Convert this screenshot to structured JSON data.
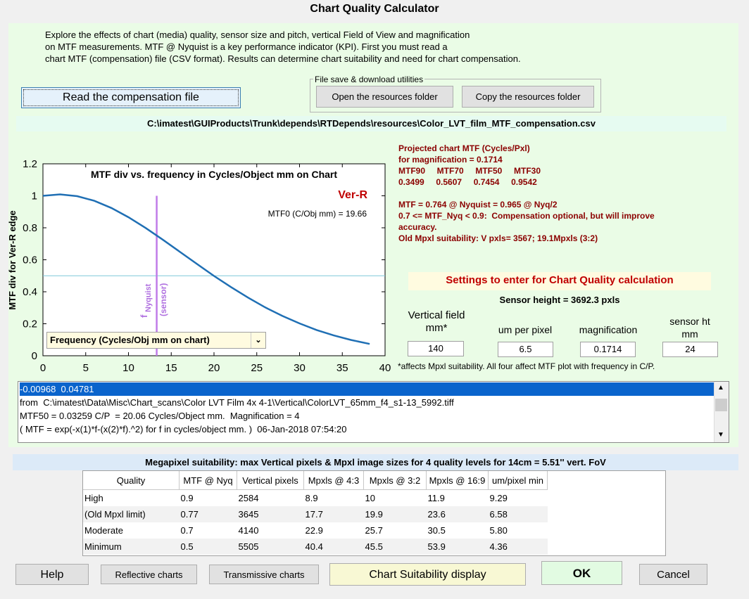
{
  "window": {
    "title": "Chart Quality Calculator"
  },
  "intro": {
    "lines": [
      "Explore the effects of chart (media) quality, sensor size and pitch, vertical Field of View and magnification",
      "on MTF measurements. MTF @ Nyquist is a key performance indicator (KPI). First you must read a",
      "chart MTF (compensation) file (CSV format). Results can determine chart suitability and need for chart compensation."
    ]
  },
  "buttons": {
    "read_comp": "Read the compensation file",
    "open_res": "Open the resources folder",
    "copy_res": "Copy the resources folder",
    "help": "Help",
    "reflective": "Reflective charts",
    "transmissive": "Transmissive charts",
    "chart_suit": "Chart Suitability display",
    "ok": "OK",
    "cancel": "Cancel"
  },
  "file_save_group": {
    "title": "File save & download utilities"
  },
  "file_path": "C:\\imatest\\GUIProducts\\Trunk\\depends\\RTDepends\\resources\\Color_LVT_film_MTF_compensation.csv",
  "results": {
    "lines": [
      "Projected chart MTF (Cycles/Pxl)",
      "for magnification = 0.1714",
      "MTF90     MTF70     MTF50     MTF30",
      "0.3499     0.5607     0.7454     0.9542",
      "",
      "MTF = 0.764 @ Nyquist = 0.965 @ Nyq/2",
      "0.7 <= MTF_Nyq < 0.9:  Compensation optional, but will improve",
      "accuracy.",
      "Old Mpxl suitability: V pxls= 3567; 19.1Mpxls (3:2)"
    ]
  },
  "settings": {
    "title": "Settings to enter for Chart Quality calculation",
    "sensor_height": "Sensor height = 3692.3 pxls",
    "fields": [
      {
        "label": "Vertical field mm*",
        "value": "140"
      },
      {
        "label": "um per pixel",
        "value": "6.5"
      },
      {
        "label": "magnification",
        "value": "0.1714"
      },
      {
        "label": "sensor ht mm",
        "value": "24"
      }
    ],
    "note": "*affects Mpxl suitability.   All four affect MTF plot with frequency in C/P."
  },
  "chart_dropdown": {
    "selected": "Frequency (Cycles/Obj mm on chart)"
  },
  "list": {
    "items": [
      "-0.00968  0.04781",
      "from  C:\\imatest\\Data\\Misc\\Chart_scans\\Color LVT Film 4x 4-1\\Vertical\\ColorLVT_65mm_f4_s1-13_5992.tiff",
      "MTF50 = 0.03259 C/P  = 20.06 Cycles/Object mm.  Magnification = 4",
      "( MTF = exp(-x(1)*f-(x(2)*f).^2) for f in cycles/object mm. )  06-Jan-2018 07:54:20"
    ]
  },
  "megapixel": {
    "header": "Megapixel suitability:  max Vertical pixels & Mpxl image sizes for 4 quality levels for 14cm = 5.51'' vert. FoV",
    "columns": [
      "Quality",
      "MTF @ Nyq",
      "Vertical pixels",
      "Mpxls @ 4:3",
      "Mpxls @ 3:2",
      "Mpxls @ 16:9",
      "um/pixel min"
    ],
    "rows": [
      [
        "High",
        "0.9",
        "2584",
        "8.9",
        "10",
        "11.9",
        "9.29"
      ],
      [
        "(Old Mpxl limit)",
        "0.77",
        "3645",
        "17.7",
        "19.9",
        "23.6",
        "6.58"
      ],
      [
        "Moderate",
        "0.7",
        "4140",
        "22.9",
        "25.7",
        "30.5",
        "5.80"
      ],
      [
        "Minimum",
        "0.5",
        "5505",
        "40.4",
        "45.5",
        "53.9",
        "4.36"
      ]
    ]
  },
  "chart_data": {
    "type": "line",
    "title": "MTF div vs. frequency in Cycles/Object mm on Chart",
    "ylabel": "MTF div for Ver-R edge",
    "xlabel": "",
    "xlim": [
      0,
      40
    ],
    "ylim": [
      0,
      1.2
    ],
    "xticks": [
      "0",
      "5",
      "10",
      "15",
      "20",
      "25",
      "30",
      "35",
      "40"
    ],
    "yticks": [
      "0",
      "0.2",
      "0.4",
      "0.6",
      "0.8",
      "1",
      "1.2"
    ],
    "annotation_channel": "Ver-R",
    "annotation_mtf0": "MTF0 (C/Obj mm) = 19.66",
    "nyquist_x": 13.3,
    "nyquist_label": "f",
    "nyquist_sub": "Nyquist",
    "sensor_label": "(sensor)",
    "hline_y": 0.5,
    "series": [
      {
        "x": [
          0,
          2,
          4,
          6,
          8,
          10,
          12,
          14,
          16,
          18,
          20,
          22,
          24,
          26,
          28,
          30,
          32,
          34,
          36,
          38.2
        ],
        "y": [
          1.0,
          1.009,
          0.998,
          0.969,
          0.924,
          0.866,
          0.799,
          0.726,
          0.65,
          0.574,
          0.499,
          0.429,
          0.363,
          0.302,
          0.249,
          0.202,
          0.161,
          0.127,
          0.099,
          0.074
        ]
      }
    ],
    "colors": {
      "curve": "#1f6fb4",
      "nyquist": "#c07be8",
      "hline": "#7ec8d8",
      "channel": "#c00000"
    }
  }
}
